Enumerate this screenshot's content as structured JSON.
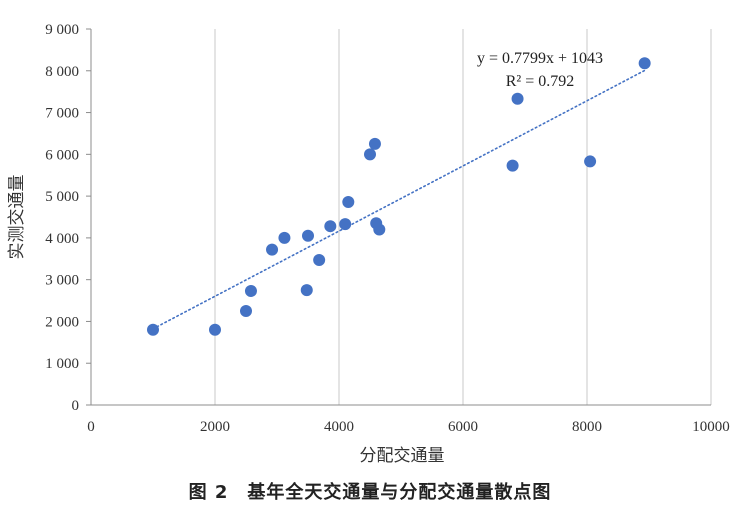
{
  "caption": "图 2　基年全天交通量与分配交通量散点图",
  "chart_data": {
    "type": "scatter",
    "title": "",
    "xlabel": "分配交通量",
    "ylabel": "实测交通量",
    "xlim": [
      0,
      10000
    ],
    "ylim": [
      0,
      9000
    ],
    "x_ticks": [
      0,
      2000,
      4000,
      6000,
      8000,
      10000
    ],
    "x_tick_labels": [
      "0",
      "2000",
      "4000",
      "6000",
      "8000",
      "10000"
    ],
    "y_ticks": [
      0,
      1000,
      2000,
      3000,
      4000,
      5000,
      6000,
      7000,
      8000,
      9000
    ],
    "y_tick_labels": [
      "0",
      "1 000",
      "2 000",
      "3 000",
      "4 000",
      "5 000",
      "6 000",
      "7 000",
      "8 000",
      "9 000"
    ],
    "grid": "vertical",
    "marker_color": "#4472c4",
    "trendline_color": "#4472c4",
    "points": [
      {
        "x": 1000,
        "y": 1800
      },
      {
        "x": 2000,
        "y": 1800
      },
      {
        "x": 2500,
        "y": 2250
      },
      {
        "x": 2580,
        "y": 2730
      },
      {
        "x": 2920,
        "y": 3720
      },
      {
        "x": 3120,
        "y": 4000
      },
      {
        "x": 3480,
        "y": 2750
      },
      {
        "x": 3500,
        "y": 4050
      },
      {
        "x": 3680,
        "y": 3470
      },
      {
        "x": 3860,
        "y": 4280
      },
      {
        "x": 4100,
        "y": 4330
      },
      {
        "x": 4150,
        "y": 4860
      },
      {
        "x": 4500,
        "y": 6000
      },
      {
        "x": 4580,
        "y": 6250
      },
      {
        "x": 4600,
        "y": 4350
      },
      {
        "x": 4650,
        "y": 4200
      },
      {
        "x": 6800,
        "y": 5730
      },
      {
        "x": 6880,
        "y": 7330
      },
      {
        "x": 8050,
        "y": 5830
      },
      {
        "x": 8930,
        "y": 8180
      }
    ],
    "trendline": {
      "type": "linear",
      "slope": 0.7799,
      "intercept": 1043,
      "x_range": [
        1000,
        8930
      ],
      "equation": "y = 0.7799x + 1043",
      "r_squared": "R² = 0.792"
    }
  }
}
